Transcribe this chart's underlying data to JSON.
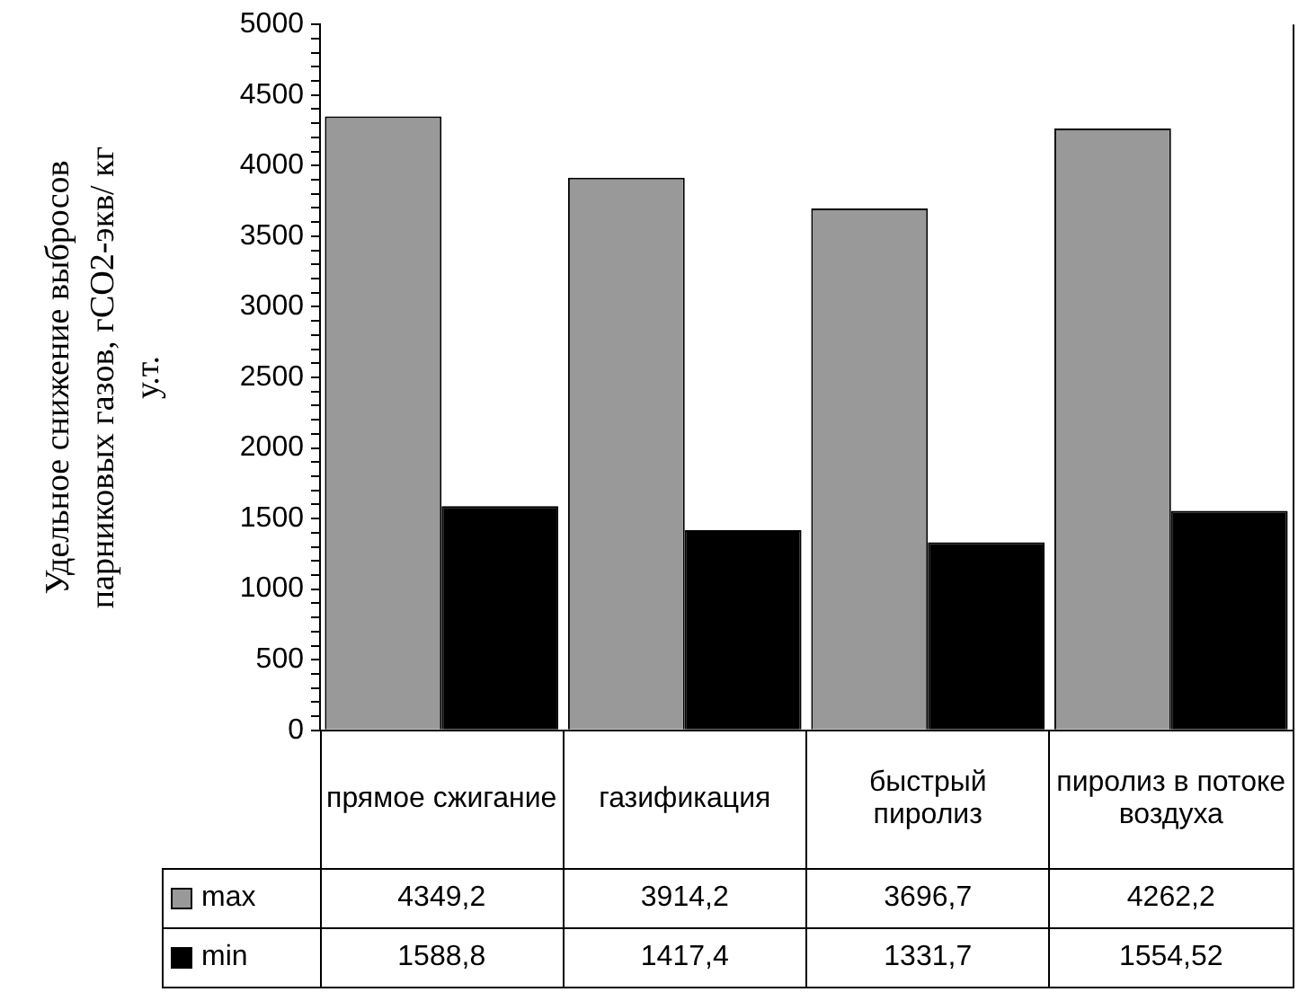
{
  "chart_data": {
    "type": "bar",
    "ylabel": "Удельное снижение выбросов парниковых газов, гСО2-экв/ кг у.т.",
    "categories": [
      "прямое сжигание",
      "газификация",
      "быстрый пиролиз",
      "пиролиз в потоке воздуха"
    ],
    "series": [
      {
        "name": "max",
        "color": "#999999",
        "values": [
          4349.2,
          3914.2,
          3696.7,
          4262.2
        ],
        "value_labels": [
          "4349,2",
          "3914,2",
          "3696,7",
          "4262,2"
        ]
      },
      {
        "name": "min",
        "color": "#000000",
        "values": [
          1588.8,
          1417.4,
          1331.7,
          1554.52
        ],
        "value_labels": [
          "1588,8",
          "1417,4",
          "1331,7",
          "1554,52"
        ]
      }
    ],
    "ylim": [
      0,
      5000
    ],
    "yticks": [
      0,
      {
        "value": 100,
        "label": null
      },
      {
        "value": 200,
        "label": null
      },
      {
        "value": 300,
        "label": null
      },
      {
        "value": 400,
        "label": null
      },
      500,
      {
        "value": 600,
        "label": null
      },
      {
        "value": 700,
        "label": null
      },
      {
        "value": 800,
        "label": null
      },
      {
        "value": 900,
        "label": null
      },
      1000,
      {
        "value": 1100,
        "label": null
      },
      {
        "value": 1200,
        "label": null
      },
      {
        "value": 1300,
        "label": null
      },
      {
        "value": 1400,
        "label": null
      },
      1500,
      {
        "value": 1600,
        "label": null
      },
      {
        "value": 1700,
        "label": null
      },
      {
        "value": 1800,
        "label": null
      },
      {
        "value": 1900,
        "label": null
      },
      2000,
      {
        "value": 2100,
        "label": null
      },
      {
        "value": 2200,
        "label": null
      },
      {
        "value": 2300,
        "label": null
      },
      {
        "value": 2400,
        "label": null
      },
      2500,
      {
        "value": 2600,
        "label": null
      },
      {
        "value": 2700,
        "label": null
      },
      {
        "value": 2800,
        "label": null
      },
      {
        "value": 2900,
        "label": null
      },
      3000,
      {
        "value": 3100,
        "label": null
      },
      {
        "value": 3200,
        "label": null
      },
      {
        "value": 3300,
        "label": null
      },
      {
        "value": 3400,
        "label": null
      },
      3500,
      {
        "value": 3600,
        "label": null
      },
      {
        "value": 3700,
        "label": null
      },
      {
        "value": 3800,
        "label": null
      },
      {
        "value": 3900,
        "label": null
      },
      4000,
      {
        "value": 4100,
        "label": null
      },
      {
        "value": 4200,
        "label": null
      },
      {
        "value": 4300,
        "label": null
      },
      {
        "value": 4400,
        "label": null
      },
      4500,
      {
        "value": 4600,
        "label": null
      },
      {
        "value": 4700,
        "label": null
      },
      {
        "value": 4800,
        "label": null
      },
      {
        "value": 4900,
        "label": null
      },
      5000
    ],
    "grid": false,
    "legend": "bottom"
  }
}
